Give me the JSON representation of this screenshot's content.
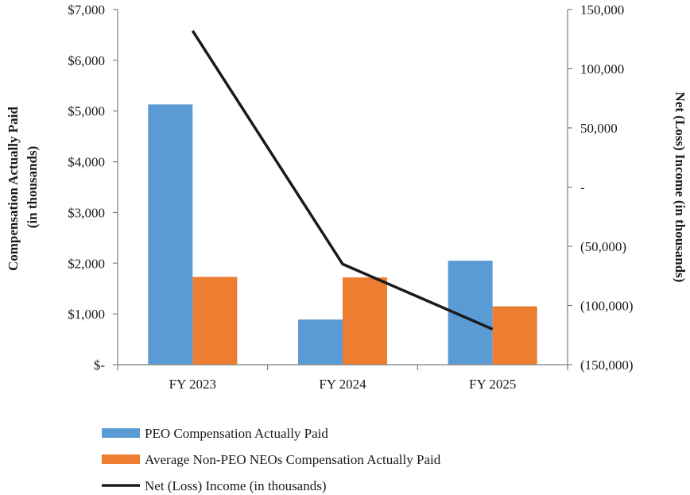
{
  "chart_data": {
    "type": "bar",
    "categories": [
      "FY 2023",
      "FY 2024",
      "FY 2025"
    ],
    "series": [
      {
        "name": "PEO Compensation Actually Paid",
        "type": "bar",
        "axis": "left",
        "color": "#5B9BD5",
        "values": [
          5130,
          890,
          2050
        ]
      },
      {
        "name": "Average Non-PEO NEOs Compensation Actually Paid",
        "type": "bar",
        "axis": "left",
        "color": "#ED7D31",
        "values": [
          1730,
          1720,
          1150
        ]
      },
      {
        "name": "Net (Loss) Income (in thousands)",
        "type": "line",
        "axis": "right",
        "color": "#1a1a1a",
        "values": [
          132000,
          -65000,
          -120000
        ]
      }
    ],
    "left_axis": {
      "label_line1": "Compensation Actually Paid",
      "label_line2": "(in thousands)",
      "ylim": [
        0,
        7000
      ],
      "ticks": [
        0,
        1000,
        2000,
        3000,
        4000,
        5000,
        6000,
        7000
      ],
      "tick_labels": [
        "$-",
        "$1,000",
        "$2,000",
        "$3,000",
        "$4,000",
        "$5,000",
        "$6,000",
        "$7,000"
      ]
    },
    "right_axis": {
      "label": "Net (Loss) Income (in thousands)",
      "ylim": [
        -150000,
        150000
      ],
      "ticks": [
        -150000,
        -100000,
        -50000,
        0,
        50000,
        100000,
        150000
      ],
      "tick_labels": [
        "(150,000)",
        "(100,000)",
        "(50,000)",
        "-",
        "50,000",
        "100,000",
        "150,000"
      ]
    },
    "legend": {
      "placement": "bottom",
      "entries": [
        {
          "label": "PEO Compensation Actually Paid",
          "color": "#5B9BD5",
          "kind": "bar"
        },
        {
          "label": "Average Non-PEO NEOs Compensation Actually Paid",
          "color": "#ED7D31",
          "kind": "bar"
        },
        {
          "label": "Net (Loss) Income (in thousands)",
          "color": "#1a1a1a",
          "kind": "line"
        }
      ]
    },
    "grid": false
  }
}
